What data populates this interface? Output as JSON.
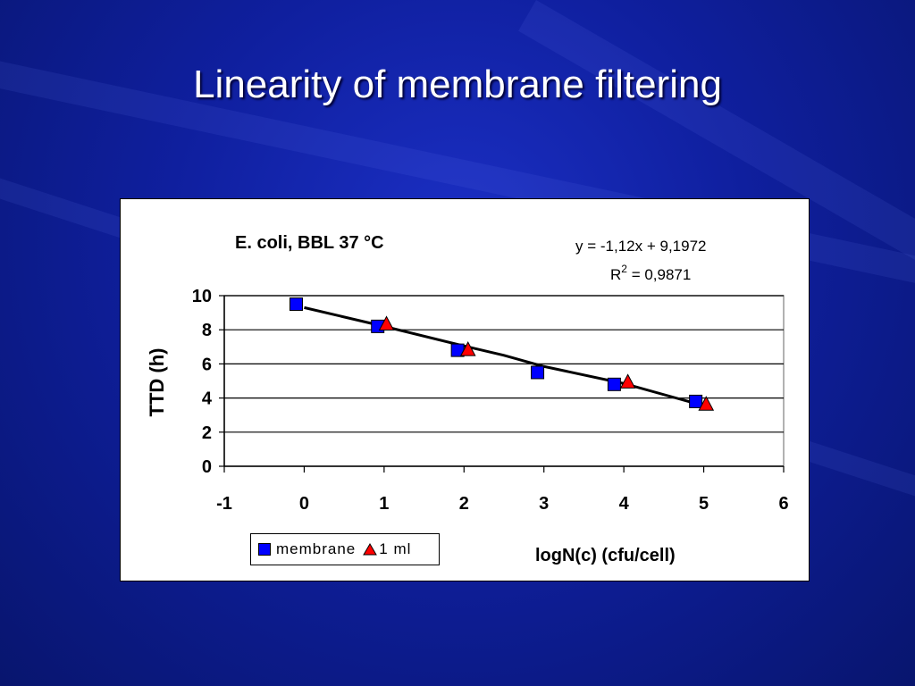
{
  "slide": {
    "title": "Linearity of membrane filtering"
  },
  "chart_data": {
    "type": "scatter",
    "title": "E. coli, BBL  37 °C",
    "xlabel": "logN(c) (cfu/cell)",
    "ylabel": "TTD (h)",
    "xlim": [
      -1,
      6
    ],
    "ylim": [
      0,
      10
    ],
    "x_ticks": [
      "-1",
      "0",
      "1",
      "2",
      "3",
      "4",
      "5",
      "6"
    ],
    "y_ticks": [
      "0",
      "2",
      "4",
      "6",
      "8",
      "10"
    ],
    "grid": "horizontal",
    "legend_position": "bottom-left",
    "equation": "y = -1,12x + 9,1972",
    "r2_prefix": "R",
    "r2_exp": "2",
    "r2_value": " = 0,9871",
    "series": [
      {
        "name": "membrane",
        "marker": "square",
        "color": "#0000ff",
        "x": [
          -0.1,
          0.92,
          1.92,
          2.92,
          3.88,
          4.9
        ],
        "y": [
          9.5,
          8.2,
          6.8,
          5.5,
          4.8,
          3.8
        ]
      },
      {
        "name": "1 ml",
        "marker": "triangle",
        "color": "#ff0000",
        "x": [
          1.03,
          2.05,
          4.05,
          5.03
        ],
        "y": [
          8.3,
          6.8,
          4.9,
          3.6
        ]
      }
    ],
    "trendline": {
      "x": [
        0,
        1,
        2,
        2.5,
        3,
        4,
        5
      ],
      "y": [
        9.3,
        8.2,
        7.05,
        6.5,
        5.85,
        4.85,
        3.55
      ]
    }
  }
}
